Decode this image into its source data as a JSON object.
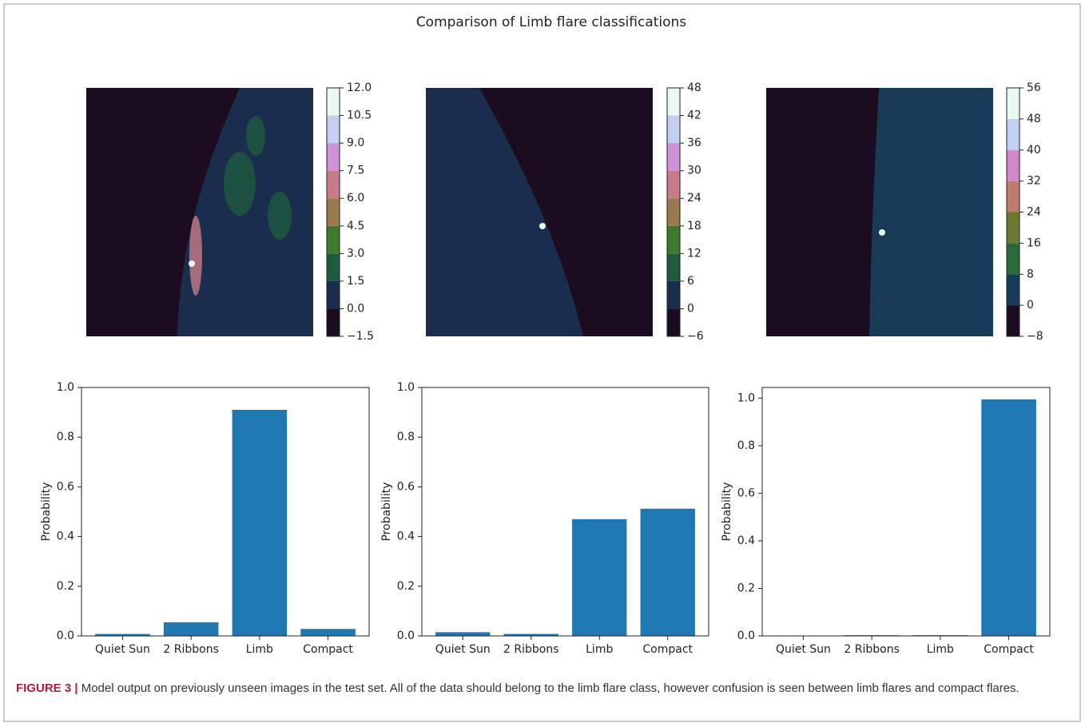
{
  "title": "Comparison of Limb flare classifications",
  "chart_data": [
    {
      "type": "colorbar",
      "ylim": [
        -1.5,
        12
      ],
      "yticks": [
        {
          "value": -1.5,
          "label": "−1.5"
        },
        {
          "value": 0,
          "label": "0.0"
        },
        1.5,
        {
          "value": 3,
          "label": "3.0"
        },
        4.5,
        {
          "value": 6,
          "label": "6.0"
        },
        7.5,
        {
          "value": 9,
          "label": "9.0"
        },
        10.5,
        {
          "value": 12,
          "label": "12.0"
        }
      ],
      "colors": [
        "#1b0c1f",
        "#1a2d4c",
        "#1d5a3e",
        "#3e7a2c",
        "#9a7a4c",
        "#c77a88",
        "#cf92d8",
        "#c2cff0",
        "#e9f8f0"
      ]
    },
    {
      "type": "colorbar",
      "ylim": [
        -6,
        48
      ],
      "yticks": [
        {
          "value": -6,
          "label": "−6"
        },
        0,
        6,
        12,
        18,
        24,
        30,
        36,
        42,
        48
      ],
      "colors": [
        "#1b0c1f",
        "#1a2d4c",
        "#1d5a3e",
        "#3e7a2c",
        "#9a7a4c",
        "#c77a88",
        "#cf92d8",
        "#c2cff0",
        "#e9f8f0"
      ]
    },
    {
      "type": "colorbar",
      "ylim": [
        -8,
        56
      ],
      "yticks": [
        {
          "value": -8,
          "label": "−8"
        },
        0,
        8,
        16,
        24,
        32,
        40,
        48,
        56
      ],
      "colors": [
        "#1b0c1f",
        "#173a55",
        "#2a6a3a",
        "#6a7a30",
        "#c07a70",
        "#d08ac8",
        "#c2cff0",
        "#e9f8f0"
      ]
    },
    {
      "type": "bar",
      "y_label": "Probability",
      "color": "#1f77b4",
      "categories": [
        "Quiet Sun",
        "2 Ribbons",
        "Limb",
        "Compact"
      ],
      "values": [
        0.008,
        0.055,
        0.91,
        0.028
      ],
      "ylim": [
        0,
        1
      ],
      "yticks": [
        {
          "value": 0,
          "label": "0.0"
        },
        0.2,
        0.4,
        0.6,
        0.8,
        {
          "value": 1,
          "label": "1.0"
        }
      ]
    },
    {
      "type": "bar",
      "y_label": "Probability",
      "color": "#1f77b4",
      "categories": [
        "Quiet Sun",
        "2 Ribbons",
        "Limb",
        "Compact"
      ],
      "values": [
        0.015,
        0.008,
        0.47,
        0.512
      ],
      "ylim": [
        0,
        1
      ],
      "yticks": [
        {
          "value": 0,
          "label": "0.0"
        },
        0.2,
        0.4,
        0.6,
        0.8,
        {
          "value": 1,
          "label": "1.0"
        }
      ]
    },
    {
      "type": "bar",
      "y_label": "Probability",
      "color": "#1f77b4",
      "categories": [
        "Quiet Sun",
        "2 Ribbons",
        "Limb",
        "Compact"
      ],
      "values": [
        0.001,
        0.003,
        0.003,
        0.995
      ],
      "ylim": [
        0,
        1.045
      ],
      "yticks": [
        {
          "value": 0,
          "label": "0.0"
        },
        0.2,
        0.4,
        0.6,
        0.8,
        {
          "value": 1,
          "label": "1.0"
        }
      ]
    }
  ],
  "caption": {
    "label": "FIGURE 3 |",
    "text": "Model output on previously unseen images in the test set. All of the data should belong to the limb flare class, however confusion is seen between limb flares and compact flares."
  }
}
